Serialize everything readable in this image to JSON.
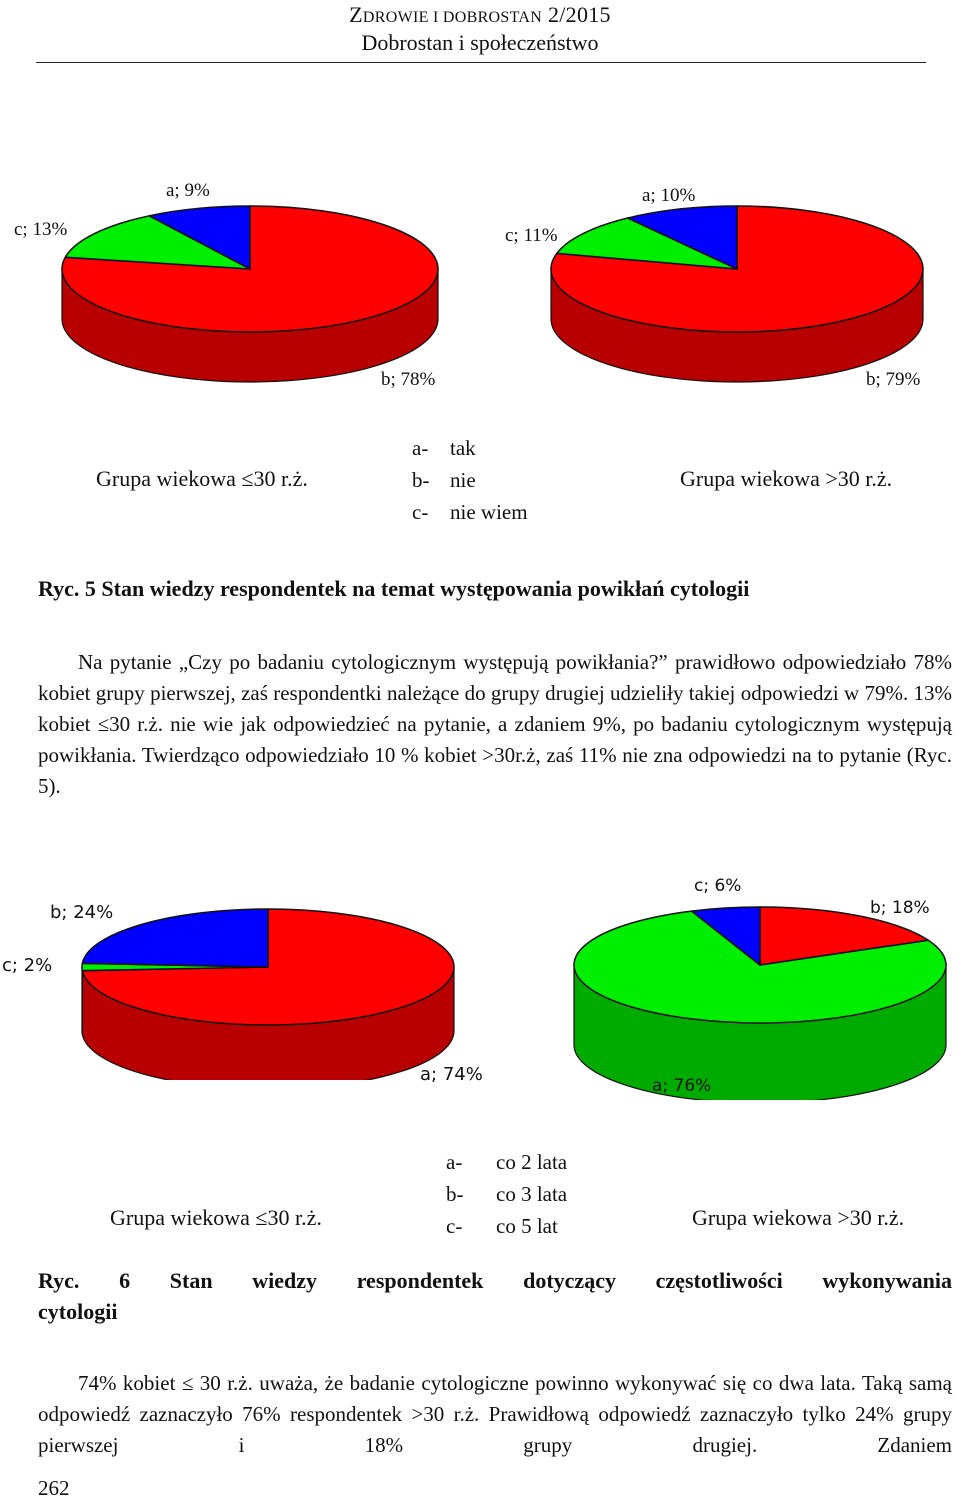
{
  "header": {
    "journal_first": "Z",
    "journal_rest": "DROWIE I DOBROSTAN",
    "issue": "2/2015",
    "section": "Dobrostan i społeczeństwo"
  },
  "figure5": {
    "left_group": "Grupa wiekowa ≤30 r.ż.",
    "right_group": "Grupa wiekowa >30 r.ż.",
    "legend": [
      {
        "key": "a-",
        "label": "tak"
      },
      {
        "key": "b-",
        "label": "nie"
      },
      {
        "key": "c-",
        "label": "nie wiem"
      }
    ],
    "caption": "Ryc. 5 Stan wiedzy respondentek na temat występowania powikłań cytologii"
  },
  "paragraph1": "Na pytanie „Czy po badaniu cytologicznym występują powikłania?” prawidłowo odpowiedziało 78% kobiet grupy pierwszej, zaś respondentki należące do grupy drugiej udzieliły takiej odpowiedzi w 79%. 13% kobiet ≤30 r.ż. nie wie jak odpowiedzieć na pytanie, a zdaniem 9%, po badaniu cytologicznym występują powikłania. Twierdząco odpowiedziało 10 % kobiet >30r.ż, zaś 11% nie zna odpowiedzi na to pytanie (Ryc. 5).",
  "figure6": {
    "left_group": "Grupa wiekowa ≤30 r.ż.",
    "right_group": "Grupa wiekowa >30 r.ż.",
    "legend": [
      {
        "key": "a-",
        "label": "co 2 lata"
      },
      {
        "key": "b-",
        "label": "co 3 lata"
      },
      {
        "key": "c-",
        "label": "co 5 lat"
      }
    ],
    "caption_line1": "Ryc. 6 Stan wiedzy respondentek dotyczący częstotliwości wykonywania",
    "caption_line2": "cytologii"
  },
  "paragraph2": "74% kobiet ≤ 30 r.ż. uważa, że badanie cytologiczne powinno wykonywać się co dwa lata. Taką samą odpowiedź zaznaczyło 76% respondentek >30 r.ż. Prawidłową odpowiedź zaznaczyło tylko 24% grupy pierwszej i 18% grupy drugiej. Zdaniem",
  "page_number": "262",
  "colors": {
    "a5": "#0000ff",
    "b5": "#ff0000",
    "c5": "#00ee00",
    "side": "#c00000",
    "outline": "#111111"
  },
  "chart_data": [
    {
      "type": "pie",
      "figure": "Ryc. 5",
      "group": "Grupa wiekowa ≤30 r.ż.",
      "categories": [
        "a",
        "b",
        "c"
      ],
      "values": [
        9,
        78,
        13
      ],
      "labels": [
        "a; 9%",
        "b; 78%",
        "c; 13%"
      ],
      "colors": [
        "#0000ff",
        "#ff0000",
        "#00ee00"
      ]
    },
    {
      "type": "pie",
      "figure": "Ryc. 5",
      "group": "Grupa wiekowa >30 r.ż.",
      "categories": [
        "a",
        "b",
        "c"
      ],
      "values": [
        10,
        79,
        11
      ],
      "labels": [
        "a; 10%",
        "b; 79%",
        "c; 11%"
      ],
      "colors": [
        "#0000ff",
        "#ff0000",
        "#00ee00"
      ]
    },
    {
      "type": "pie",
      "figure": "Ryc. 6",
      "group": "Grupa wiekowa ≤30 r.ż.",
      "categories": [
        "a",
        "b",
        "c"
      ],
      "values": [
        74,
        24,
        2
      ],
      "labels": [
        "a; 74%",
        "b; 24%",
        "c; 2%"
      ],
      "colors": [
        "#ff0000",
        "#0000ff",
        "#00ee00"
      ]
    },
    {
      "type": "pie",
      "figure": "Ryc. 6",
      "group": "Grupa wiekowa >30 r.ż.",
      "categories": [
        "a",
        "b",
        "c"
      ],
      "values": [
        76,
        18,
        6
      ],
      "labels": [
        "a; 76%",
        "b; 18%",
        "c; 6%"
      ],
      "colors": [
        "#00ee00",
        "#ff0000",
        "#0000ff"
      ]
    }
  ]
}
